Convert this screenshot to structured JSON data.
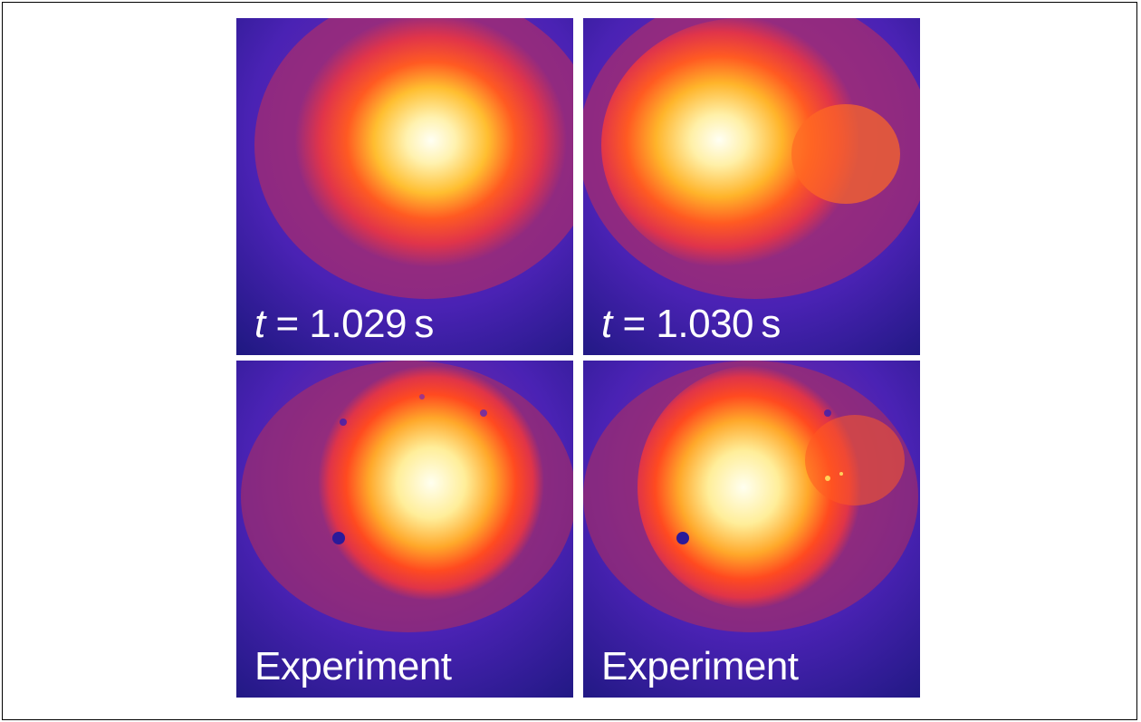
{
  "panels": {
    "top_left": {
      "var": "t",
      "eq": "=",
      "value": "1.029",
      "unit": "s"
    },
    "top_right": {
      "var": "t",
      "eq": "=",
      "value": "1.030",
      "unit": "s"
    },
    "bottom_left": {
      "label": "Experiment"
    },
    "bottom_right": {
      "label": "Experiment"
    }
  },
  "colormap": [
    "#2a1aa0",
    "#5a2ab8",
    "#c0304a",
    "#ff4a1e",
    "#ff9a18",
    "#ffe060",
    "#fffbe8"
  ]
}
